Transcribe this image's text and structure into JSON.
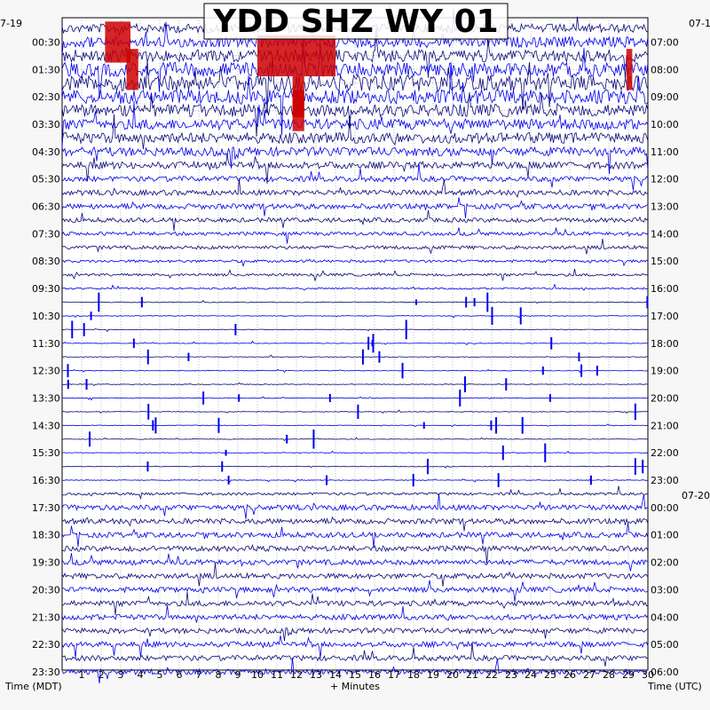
{
  "chart_data": {
    "type": "helicorder",
    "title": "YDD SHZ WY 01",
    "date_left": "7-19",
    "date_right": "07-1",
    "date_right_next": "07-20",
    "left_times": [
      "00:30",
      "01:30",
      "02:30",
      "03:30",
      "04:30",
      "05:30",
      "06:30",
      "07:30",
      "08:30",
      "09:30",
      "10:30",
      "11:30",
      "12:30",
      "13:30",
      "14:30",
      "15:30",
      "16:30",
      "17:30",
      "18:30",
      "19:30",
      "20:30",
      "21:30",
      "22:30",
      "23:30"
    ],
    "right_times": [
      "07:00",
      "08:00",
      "09:00",
      "10:00",
      "11:00",
      "12:00",
      "13:00",
      "14:00",
      "15:00",
      "16:00",
      "17:00",
      "18:00",
      "19:00",
      "20:00",
      "21:00",
      "22:00",
      "23:00",
      "00:00",
      "01:00",
      "02:00",
      "03:00",
      "04:00",
      "05:00",
      "06:00"
    ],
    "x_ticks": [
      "1",
      "2",
      "3",
      "4",
      "5",
      "6",
      "7",
      "8",
      "9",
      "10",
      "11",
      "12",
      "13",
      "14",
      "15",
      "16",
      "17",
      "18",
      "19",
      "20",
      "21",
      "22",
      "23",
      "24",
      "25",
      "26",
      "27",
      "28",
      "29",
      "30"
    ],
    "xlim": [
      0,
      30
    ],
    "traces_per_hour": 2,
    "trace_count": 48,
    "xlabel": "+ Minutes",
    "left_axis_label": "Time (MDT)",
    "right_axis_label": "Time (UTC)",
    "trace_colors": [
      "#0a0a7a",
      "#cc0000",
      "#0000ee",
      "#0a8a0a"
    ],
    "grid": true,
    "noise_level_per_trace": [
      5,
      6,
      7,
      8,
      9,
      8,
      7,
      6,
      6,
      5,
      4,
      3,
      3,
      3,
      2.5,
      2,
      2,
      1.5,
      1.5,
      1,
      0.5,
      0.4,
      0.4,
      0.4,
      0.4,
      0.4,
      0.4,
      0.4,
      0.4,
      0.4,
      0.4,
      0.4,
      0.4,
      0.4,
      1.5,
      3,
      3,
      3,
      3,
      3,
      3,
      3,
      3,
      3,
      3,
      3,
      3,
      3
    ],
    "clipped_events": [
      {
        "trace": 1,
        "minute_start": 2.2,
        "minute_end": 3.5
      },
      {
        "trace": 2,
        "minute_start": 10,
        "minute_end": 14
      },
      {
        "trace": 3,
        "minute_start": 3.3,
        "minute_end": 3.9
      },
      {
        "trace": 5,
        "minute_start": 11.8,
        "minute_end": 12.4
      },
      {
        "trace": 6,
        "minute_start": 11.8,
        "minute_end": 12.4
      },
      {
        "trace": 3,
        "minute_start": 28.9,
        "minute_end": 29.2
      }
    ]
  }
}
